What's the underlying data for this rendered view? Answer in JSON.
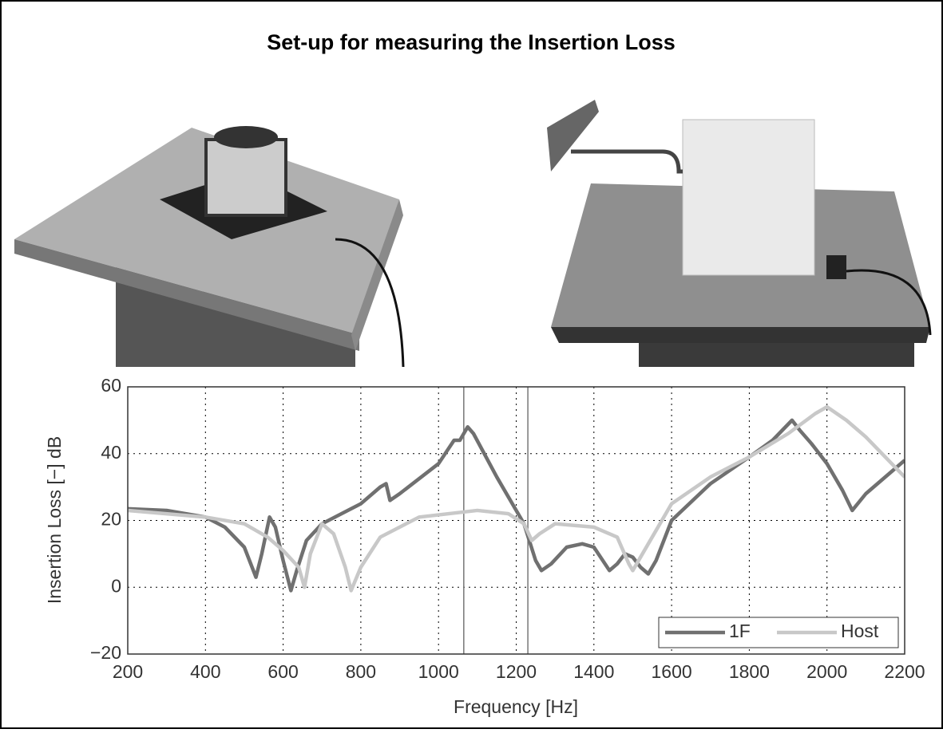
{
  "header": {
    "title": "Set-up for measuring the Insertion Loss"
  },
  "chart_data": {
    "type": "line",
    "x_label": "Frequency [Hz]",
    "y_label": "Insertion Loss [−] dB",
    "xlim": [
      200,
      2200
    ],
    "ylim": [
      -20,
      60
    ],
    "xticks": [
      200,
      400,
      600,
      800,
      1000,
      1200,
      1400,
      1600,
      1800,
      2000,
      2200
    ],
    "yticks": [
      {
        "value": -20,
        "label": "−20"
      },
      0,
      20,
      40,
      60
    ],
    "grid": true,
    "legend": "lower right",
    "vlines": [
      1065,
      1230
    ],
    "series": [
      {
        "name": "1F",
        "color": "#707070",
        "x": [
          200,
          300,
          400,
          450,
          500,
          530,
          545,
          565,
          580,
          600,
          620,
          635,
          660,
          700,
          800,
          850,
          865,
          875,
          900,
          1000,
          1040,
          1055,
          1075,
          1090,
          1150,
          1220,
          1250,
          1265,
          1290,
          1330,
          1370,
          1400,
          1440,
          1460,
          1480,
          1500,
          1520,
          1540,
          1560,
          1600,
          1700,
          1800,
          1860,
          1910,
          1930,
          1960,
          2000,
          2040,
          2065,
          2100,
          2200
        ],
        "values": [
          23.5,
          23,
          21,
          18,
          12,
          3,
          10,
          21,
          18,
          8,
          -1,
          5,
          14,
          19,
          25,
          30,
          31,
          26,
          28,
          37,
          44,
          44,
          48,
          46,
          33,
          19,
          8,
          5,
          7,
          12,
          13,
          12,
          5,
          7,
          10,
          9,
          6,
          4,
          8,
          20,
          31,
          39,
          44,
          50,
          47,
          43,
          37,
          29,
          23,
          28,
          38
        ]
      },
      {
        "name": "Host",
        "color": "#c8c8c8",
        "x": [
          200,
          400,
          500,
          560,
          600,
          640,
          655,
          670,
          700,
          730,
          760,
          775,
          800,
          850,
          950,
          1100,
          1180,
          1220,
          1240,
          1260,
          1300,
          1400,
          1460,
          1490,
          1500,
          1520,
          1560,
          1600,
          1700,
          1800,
          1900,
          1970,
          2000,
          2050,
          2100,
          2200
        ],
        "values": [
          23,
          21,
          19,
          15,
          11,
          6,
          0,
          10,
          19,
          16,
          6,
          -1,
          6,
          15,
          21,
          23,
          22,
          19,
          14,
          16,
          19,
          18,
          15,
          7,
          5,
          9,
          17,
          25,
          33,
          39,
          46,
          52,
          54,
          50,
          45,
          33
        ]
      }
    ]
  }
}
